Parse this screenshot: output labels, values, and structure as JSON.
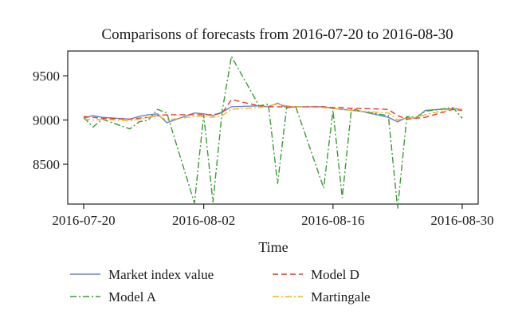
{
  "chart_data": {
    "type": "line",
    "title": "Comparisons of forecasts from 2016-07-20 to 2016-08-30",
    "xlabel": "Time",
    "ylabel": "",
    "x_tick_labels": [
      "2016-07-20",
      "2016-08-02",
      "2016-08-16",
      "2016-08-30"
    ],
    "y_ticks": [
      8500,
      9000,
      9500
    ],
    "xlim": [
      "2016-07-20",
      "2016-08-30"
    ],
    "ylim": [
      8050,
      9780
    ],
    "grid": false,
    "legend_placement": "bottom",
    "dates": [
      "2016-07-20",
      "2016-07-21",
      "2016-07-22",
      "2016-07-25",
      "2016-07-26",
      "2016-07-27",
      "2016-07-28",
      "2016-07-29",
      "2016-08-01",
      "2016-08-02",
      "2016-08-03",
      "2016-08-04",
      "2016-08-05",
      "2016-08-08",
      "2016-08-09",
      "2016-08-10",
      "2016-08-11",
      "2016-08-12",
      "2016-08-15",
      "2016-08-16",
      "2016-08-17",
      "2016-08-18",
      "2016-08-19",
      "2016-08-22",
      "2016-08-23",
      "2016-08-24",
      "2016-08-25",
      "2016-08-26",
      "2016-08-29",
      "2016-08-30"
    ],
    "series": [
      {
        "name": "Market index value",
        "color": "#6a7fd0",
        "dash": "solid",
        "values": [
          9020,
          9050,
          9030,
          9010,
          9040,
          9060,
          9070,
          8970,
          9080,
          9070,
          9050,
          9090,
          9150,
          9160,
          9150,
          9190,
          9140,
          9150,
          9150,
          9130,
          9120,
          9110,
          9100,
          9030,
          8980,
          9030,
          9020,
          9110,
          9130,
          9120
        ]
      },
      {
        "name": "Model A",
        "color": "#3a9a35",
        "dash": "dashdot",
        "values": [
          9030,
          8920,
          9010,
          8900,
          8980,
          9000,
          9120,
          9080,
          8060,
          9060,
          8070,
          9100,
          9720,
          9160,
          9180,
          8280,
          9160,
          9140,
          8230,
          9110,
          8120,
          9130,
          9100,
          9050,
          8000,
          9040,
          9030,
          9100,
          9140,
          9020
        ]
      },
      {
        "name": "Model D",
        "color": "#e23a2e",
        "dash": "dashed",
        "values": [
          9040,
          9030,
          9020,
          9010,
          9020,
          9030,
          9050,
          9060,
          9060,
          9060,
          9060,
          9080,
          9230,
          9160,
          9150,
          9150,
          9150,
          9150,
          9150,
          9140,
          9140,
          9130,
          9130,
          9120,
          9050,
          9010,
          9020,
          9030,
          9120,
          9110
        ]
      },
      {
        "name": "Martingale",
        "color": "#f1b51a",
        "dash": "dashdot",
        "values": [
          9010,
          9000,
          9010,
          8990,
          9010,
          9030,
          9050,
          9000,
          9040,
          9040,
          9030,
          9050,
          9120,
          9140,
          9160,
          9180,
          9160,
          9150,
          9140,
          9130,
          9120,
          9110,
          9100,
          9080,
          9000,
          9020,
          9030,
          9060,
          9130,
          9120
        ]
      }
    ]
  }
}
